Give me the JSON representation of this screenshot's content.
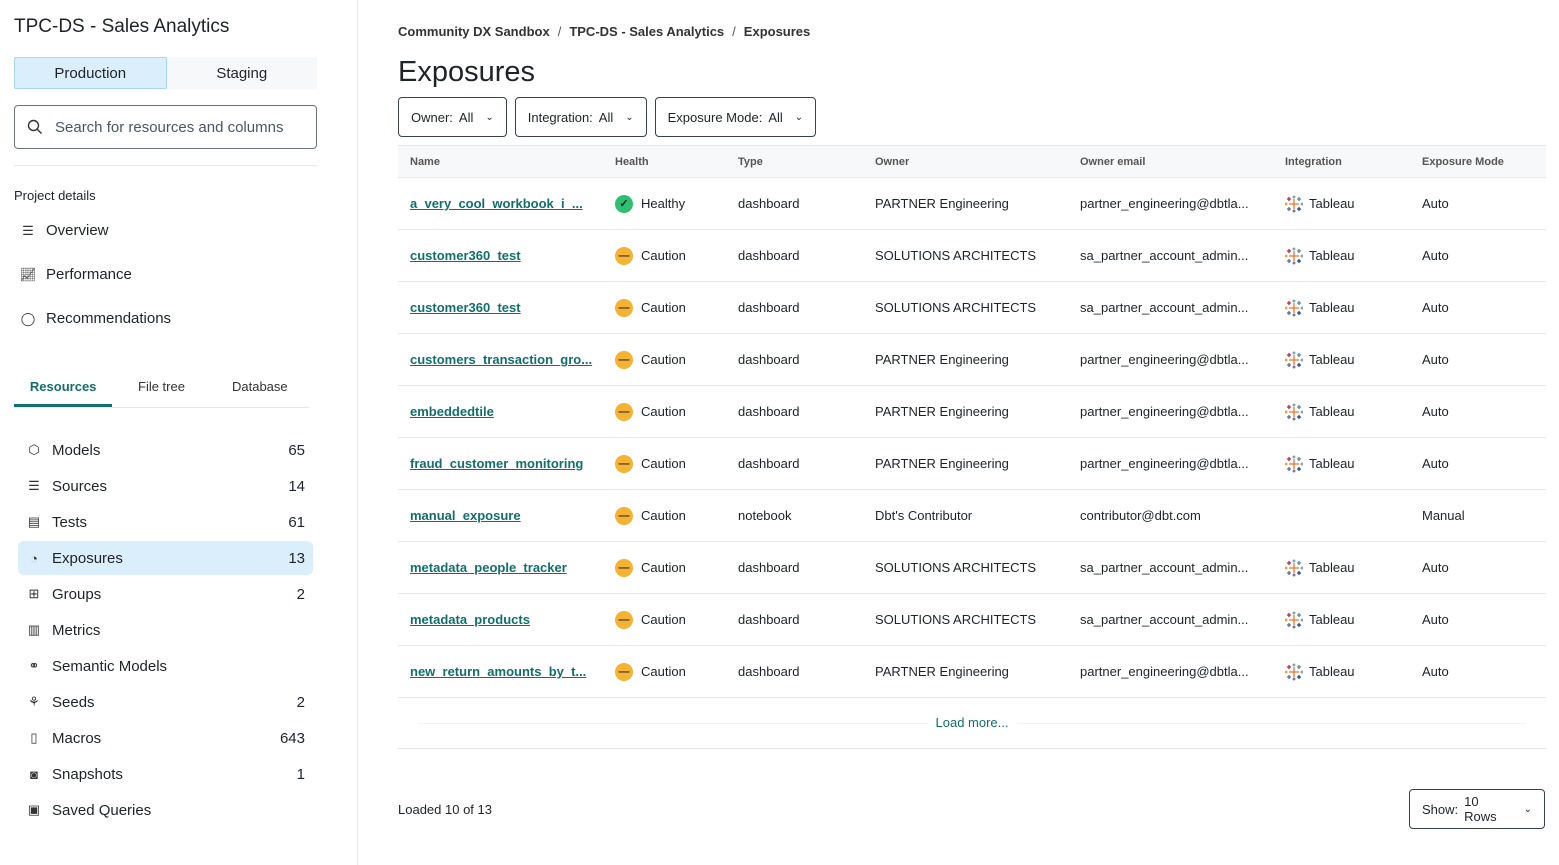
{
  "sidebar": {
    "title": "TPC-DS - Sales Analytics",
    "env": {
      "production": "Production",
      "staging": "Staging",
      "active": "Production"
    },
    "search_placeholder": "Search for resources and columns",
    "project_details": "Project details",
    "nav": [
      {
        "label": "Overview",
        "icon": "list-icon"
      },
      {
        "label": "Performance",
        "icon": "chart-line-icon"
      },
      {
        "label": "Recommendations",
        "icon": "lightbulb-icon"
      }
    ],
    "tabs": [
      "Resources",
      "File tree",
      "Database"
    ],
    "active_tab": "Resources",
    "resources": [
      {
        "label": "Models",
        "count": "65",
        "icon": "cube-icon"
      },
      {
        "label": "Sources",
        "count": "14",
        "icon": "database-icon"
      },
      {
        "label": "Tests",
        "count": "61",
        "icon": "clipboard-icon"
      },
      {
        "label": "Exposures",
        "count": "13",
        "icon": "gauge-icon",
        "active": true
      },
      {
        "label": "Groups",
        "count": "2",
        "icon": "grid-icon"
      },
      {
        "label": "Metrics",
        "count": "",
        "icon": "bar-chart-icon"
      },
      {
        "label": "Semantic Models",
        "count": "",
        "icon": "network-icon"
      },
      {
        "label": "Seeds",
        "count": "2",
        "icon": "seedling-icon"
      },
      {
        "label": "Macros",
        "count": "643",
        "icon": "file-icon"
      },
      {
        "label": "Snapshots",
        "count": "1",
        "icon": "camera-icon"
      },
      {
        "label": "Saved Queries",
        "count": "",
        "icon": "save-icon"
      }
    ]
  },
  "main": {
    "breadcrumb": [
      "Community DX Sandbox",
      "TPC-DS - Sales Analytics",
      "Exposures"
    ],
    "title": "Exposures",
    "filters": [
      {
        "label": "Owner:",
        "value": "All"
      },
      {
        "label": "Integration:",
        "value": "All"
      },
      {
        "label": "Exposure Mode:",
        "value": "All"
      }
    ],
    "columns": [
      "Name",
      "Health",
      "Type",
      "Owner",
      "Owner email",
      "Integration",
      "Exposure Mode"
    ],
    "rows": [
      [
        "a_very_cool_workbook_i_...",
        "Healthy",
        "dashboard",
        "PARTNER Engineering",
        "partner_engineering@dbtla...",
        "Tableau",
        "Auto"
      ],
      [
        "customer360_test",
        "Caution",
        "dashboard",
        "SOLUTIONS ARCHITECTS",
        "sa_partner_account_admin...",
        "Tableau",
        "Auto"
      ],
      [
        "customer360_test",
        "Caution",
        "dashboard",
        "SOLUTIONS ARCHITECTS",
        "sa_partner_account_admin...",
        "Tableau",
        "Auto"
      ],
      [
        "customers_transaction_gro...",
        "Caution",
        "dashboard",
        "PARTNER Engineering",
        "partner_engineering@dbtla...",
        "Tableau",
        "Auto"
      ],
      [
        "embeddedtile",
        "Caution",
        "dashboard",
        "PARTNER Engineering",
        "partner_engineering@dbtla...",
        "Tableau",
        "Auto"
      ],
      [
        "fraud_customer_monitoring",
        "Caution",
        "dashboard",
        "PARTNER Engineering",
        "partner_engineering@dbtla...",
        "Tableau",
        "Auto"
      ],
      [
        "manual_exposure",
        "Caution",
        "notebook",
        "Dbt's Contributor",
        "contributor@dbt.com",
        "",
        "Manual"
      ],
      [
        "metadata_people_tracker",
        "Caution",
        "dashboard",
        "SOLUTIONS ARCHITECTS",
        "sa_partner_account_admin...",
        "Tableau",
        "Auto"
      ],
      [
        "metadata_products",
        "Caution",
        "dashboard",
        "SOLUTIONS ARCHITECTS",
        "sa_partner_account_admin...",
        "Tableau",
        "Auto"
      ],
      [
        "new_return_amounts_by_t...",
        "Caution",
        "dashboard",
        "PARTNER Engineering",
        "partner_engineering@dbtla...",
        "Tableau",
        "Auto"
      ]
    ],
    "load_more": "Load more...",
    "loaded": "Loaded 10 of 13",
    "show_label": "Show:",
    "show_value": "10 Rows"
  },
  "colors": {
    "accent": "#126f6b",
    "healthy": "#2fbf71",
    "caution": "#f5b233",
    "selected": "#dbeefc"
  }
}
